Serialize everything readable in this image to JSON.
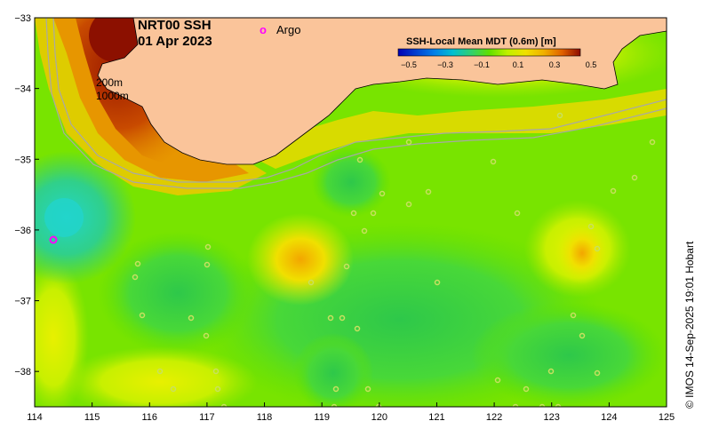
{
  "map": {
    "title_line1": "NRT00 SSH",
    "title_line2": "01 Apr 2023",
    "argo_marker": "o",
    "argo_label": "Argo",
    "contour_label_200": "200m",
    "contour_label_1000": "1000m",
    "credit": "© IMOS 14-Sep-2025 19:01 Hobart"
  },
  "colorbar": {
    "title": "SSH-Local Mean MDT (0.6m) [m]",
    "ticks": [
      "−0.5",
      "−0.3",
      "−0.1",
      "0.1",
      "0.3",
      "0.5"
    ],
    "tick_values": [
      -0.5,
      -0.3,
      -0.1,
      0.1,
      0.3,
      0.5
    ],
    "range": [
      -0.5,
      0.5
    ],
    "colors": [
      "#0000b4",
      "#0060e0",
      "#00c0d0",
      "#30d070",
      "#60e000",
      "#c0f000",
      "#f0e000",
      "#f0b000",
      "#e07000",
      "#c03000",
      "#8c0a00"
    ]
  },
  "axes": {
    "x_ticks": [
      "114",
      "115",
      "116",
      "117",
      "118",
      "119",
      "120",
      "121",
      "122",
      "123",
      "124",
      "125"
    ],
    "x_values": [
      114,
      115,
      116,
      117,
      118,
      119,
      120,
      121,
      122,
      123,
      124,
      125
    ],
    "y_ticks": [
      "−33",
      "−34",
      "−35",
      "−36",
      "−37",
      "−38"
    ],
    "y_values": [
      -33,
      -34,
      -35,
      -36,
      -37,
      -38
    ],
    "xlim": [
      114,
      125
    ],
    "ylim": [
      -38.5,
      -33
    ]
  },
  "colors": {
    "land": "#fac49a",
    "argo": "#ff00ff",
    "contour": "#a8a8a8"
  }
}
